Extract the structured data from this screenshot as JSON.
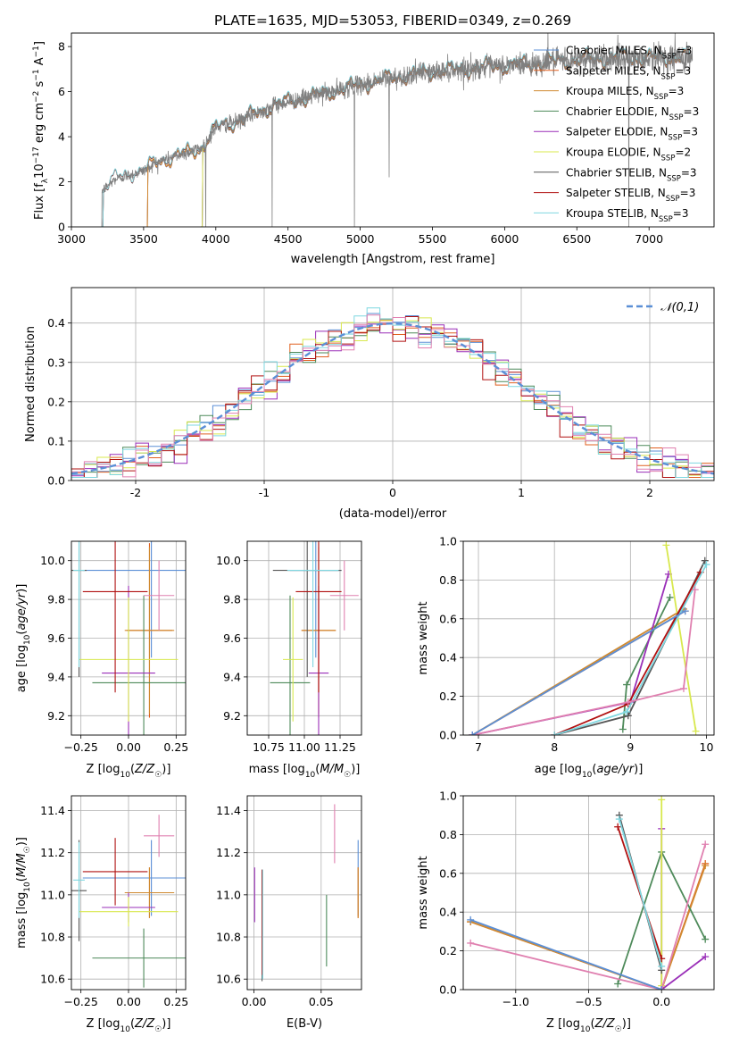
{
  "figure_title": "PLATE=1635, MJD=53053, FIBERID=0349, z=0.269",
  "colors": {
    "chabrier_miles": "#5b8fd6",
    "salpeter_miles": "#e06020",
    "kroupa_miles": "#d08a30",
    "chabrier_elodie": "#4e8a5a",
    "salpeter_elodie": "#9a2fb8",
    "kroupa_elodie": "#d8e84e",
    "chabrier_stelib": "#555555",
    "salpeter_stelib": "#b01010",
    "kroupa_stelib": "#7fd7e0",
    "pink": "#e080b0",
    "data": "#808080",
    "gauss": "#5b8fd6"
  },
  "chart_data": [
    {
      "id": "spectrum",
      "type": "line",
      "xlabel": "wavelength [Angstrom, rest frame]",
      "ylabel": "Flux [f_λ 10^-17 erg cm^-2 s^-1 A^-1]",
      "xlim": [
        3000,
        7450
      ],
      "ylim": [
        0,
        8.6
      ],
      "xticks": [
        3000,
        3500,
        4000,
        4500,
        5000,
        5500,
        6000,
        6500,
        7000
      ],
      "yticks": [
        0,
        2,
        4,
        6,
        8
      ],
      "legend_position": "right",
      "legend": [
        "Chabrier MILES, N_SSP=3",
        "Salpeter MILES, N_SSP=3",
        "Kroupa MILES, N_SSP=3",
        "Chabrier ELODIE, N_SSP=3",
        "Salpeter ELODIE, N_SSP=3",
        "Kroupa ELODIE, N_SSP=2",
        "Chabrier STELIB, N_SSP=3",
        "Salpeter STELIB, N_SSP=3",
        "Kroupa STELIB, N_SSP=3"
      ],
      "data_range": [
        3210,
        7300
      ],
      "model_start": [
        3520,
        3520,
        3520,
        3900,
        3900,
        3900,
        3210,
        3210,
        3210
      ],
      "continuum": [
        [
          3210,
          1.6
        ],
        [
          3300,
          2.1
        ],
        [
          3500,
          2.5
        ],
        [
          3600,
          2.9
        ],
        [
          3700,
          3.1
        ],
        [
          3800,
          3.3
        ],
        [
          3900,
          3.5
        ],
        [
          4000,
          4.4
        ],
        [
          4200,
          4.8
        ],
        [
          4400,
          5.4
        ],
        [
          4600,
          5.7
        ],
        [
          4800,
          6.0
        ],
        [
          5000,
          6.3
        ],
        [
          5200,
          6.6
        ],
        [
          5400,
          6.8
        ],
        [
          5600,
          6.95
        ],
        [
          5800,
          7.05
        ],
        [
          6000,
          7.15
        ],
        [
          6200,
          7.25
        ],
        [
          6400,
          7.35
        ],
        [
          6600,
          7.45
        ],
        [
          6800,
          7.5
        ],
        [
          7000,
          7.5
        ],
        [
          7300,
          7.55
        ]
      ],
      "spikes": [
        [
          3210,
          0.0
        ],
        [
          3930,
          0.0
        ],
        [
          4390,
          0.0
        ],
        [
          4960,
          0.0
        ],
        [
          5200,
          2.2
        ],
        [
          6300,
          8.6
        ],
        [
          6860,
          0.0
        ],
        [
          7180,
          8.6
        ]
      ]
    },
    {
      "id": "residuals",
      "type": "histogram",
      "xlabel": "(data-model)/error",
      "ylabel": "Normed distribution",
      "xlim": [
        -2.5,
        2.5
      ],
      "ylim": [
        0,
        0.49
      ],
      "xticks": [
        -2,
        -1,
        0,
        1,
        2
      ],
      "yticks": [
        0.0,
        0.1,
        0.2,
        0.3,
        0.4
      ],
      "bin_width": 0.1,
      "legend": "𝒩(0,1)",
      "legend_position": "top-right",
      "grid": true
    },
    {
      "id": "age_vs_Z",
      "type": "errorbar",
      "xlabel": "Z [log10(Z/Z☉)]",
      "ylabel": "age  [log10(age/yr)]",
      "xlim": [
        -0.3,
        0.3
      ],
      "ylim": [
        9.1,
        10.1
      ],
      "xticks": [
        -0.25,
        0.0,
        0.25
      ],
      "xticklabels": [
        "−0.25",
        "0.00",
        "0.25"
      ],
      "yticks": [
        9.2,
        9.4,
        9.6,
        9.8,
        10.0
      ],
      "points": [
        {
          "c": "chabrier_miles",
          "x": 0.12,
          "xe": 0.36,
          "y": 9.95,
          "ye": 0.45
        },
        {
          "c": "salpeter_miles",
          "x": 0.11,
          "xe": 0.12,
          "y": 9.64,
          "ye": 0.45
        },
        {
          "c": "kroupa_miles",
          "x": 0.11,
          "xe": 0.13,
          "y": 9.64,
          "ye": 0.43
        },
        {
          "c": "chabrier_elodie",
          "x": 0.08,
          "xe": 0.27,
          "y": 9.37,
          "ye": 0.45
        },
        {
          "c": "salpeter_elodie",
          "x": 0.0,
          "xe": 0.14,
          "y": 9.42,
          "ye": 0.45
        },
        {
          "c": "kroupa_elodie",
          "x": 0.0,
          "xe": 0.26,
          "y": 9.49,
          "ye": 0.32
        },
        {
          "c": "chabrier_stelib",
          "x": -0.26,
          "xe": 0.04,
          "y": 9.95,
          "ye": 0.55
        },
        {
          "c": "salpeter_stelib",
          "x": -0.07,
          "xe": 0.17,
          "y": 9.84,
          "ye": 0.52
        },
        {
          "c": "kroupa_stelib",
          "x": -0.26,
          "xe": 0.03,
          "y": 9.95,
          "ye": 0.5
        },
        {
          "c": "pink",
          "x": 0.16,
          "xe": 0.08,
          "y": 9.82,
          "ye": 0.18
        }
      ]
    },
    {
      "id": "age_vs_mass",
      "type": "errorbar",
      "xlabel": "mass [log10(M/M☉)]",
      "ylabel": "",
      "xlim": [
        10.6,
        11.4
      ],
      "ylim": [
        9.1,
        10.1
      ],
      "xticks": [
        10.75,
        11.0,
        11.25
      ],
      "xticklabels": [
        "10.75",
        "11.00",
        "11.25"
      ],
      "yticks": [
        9.2,
        9.4,
        9.6,
        9.8,
        10.0
      ],
      "points": [
        {
          "c": "chabrier_miles",
          "x": 11.08,
          "xe": 0.18,
          "y": 9.95,
          "ye": 0.45
        },
        {
          "c": "salpeter_miles",
          "x": 11.1,
          "xe": 0.12,
          "y": 9.64,
          "ye": 0.45
        },
        {
          "c": "kroupa_miles",
          "x": 11.1,
          "xe": 0.12,
          "y": 9.64,
          "ye": 0.43
        },
        {
          "c": "chabrier_elodie",
          "x": 10.9,
          "xe": 0.14,
          "y": 9.37,
          "ye": 0.45
        },
        {
          "c": "salpeter_elodie",
          "x": 11.1,
          "xe": 0.07,
          "y": 9.42,
          "ye": 0.45
        },
        {
          "c": "kroupa_elodie",
          "x": 10.92,
          "xe": 0.07,
          "y": 9.49,
          "ye": 0.32
        },
        {
          "c": "chabrier_stelib",
          "x": 11.02,
          "xe": 0.24,
          "y": 9.95,
          "ye": 0.55
        },
        {
          "c": "salpeter_stelib",
          "x": 11.1,
          "xe": 0.16,
          "y": 9.84,
          "ye": 0.52
        },
        {
          "c": "kroupa_stelib",
          "x": 11.06,
          "xe": 0.18,
          "y": 9.95,
          "ye": 0.5
        },
        {
          "c": "pink",
          "x": 11.28,
          "xe": 0.1,
          "y": 9.82,
          "ye": 0.18
        }
      ]
    },
    {
      "id": "weight_vs_age",
      "type": "line",
      "xlabel": "age  [log10(age/yr)]",
      "ylabel": "mass weight",
      "xlim": [
        6.8,
        10.1
      ],
      "ylim": [
        0,
        1.0
      ],
      "xticks": [
        7,
        8,
        9,
        10
      ],
      "yticks": [
        0.0,
        0.2,
        0.4,
        0.6,
        0.8,
        1.0
      ],
      "series": [
        {
          "c": "salpeter_miles",
          "x": [
            6.92,
            9.72
          ],
          "y": [
            0.0,
            0.64
          ]
        },
        {
          "c": "kroupa_miles",
          "x": [
            6.92,
            9.7
          ],
          "y": [
            0.0,
            0.65
          ]
        },
        {
          "c": "chabrier_elodie",
          "x": [
            8.9,
            8.95,
            9.52
          ],
          "y": [
            0.03,
            0.26,
            0.71
          ]
        },
        {
          "c": "salpeter_elodie",
          "x": [
            6.92,
            9.0,
            9.5
          ],
          "y": [
            0.0,
            0.17,
            0.83
          ]
        },
        {
          "c": "kroupa_elodie",
          "x": [
            9.47,
            9.86
          ],
          "y": [
            0.98,
            0.02
          ]
        },
        {
          "c": "chabrier_stelib",
          "x": [
            8.0,
            8.97,
            9.98
          ],
          "y": [
            0.0,
            0.1,
            0.9
          ]
        },
        {
          "c": "salpeter_stelib",
          "x": [
            8.0,
            8.97,
            9.92
          ],
          "y": [
            0.0,
            0.16,
            0.84
          ]
        },
        {
          "c": "kroupa_stelib",
          "x": [
            8.0,
            8.95,
            10.0
          ],
          "y": [
            0.0,
            0.12,
            0.88
          ]
        },
        {
          "c": "pink",
          "x": [
            6.92,
            8.97,
            9.7,
            9.85
          ],
          "y": [
            0.0,
            0.17,
            0.24,
            0.75
          ]
        },
        {
          "c": "chabrier_miles",
          "x": [
            6.92,
            9.72
          ],
          "y": [
            0.0,
            0.64
          ]
        }
      ]
    },
    {
      "id": "mass_vs_Z",
      "type": "errorbar",
      "xlabel": "Z [log10(Z/Z☉)]",
      "ylabel": "mass [log10(M/M☉)]",
      "xlim": [
        -0.3,
        0.3
      ],
      "ylim": [
        10.55,
        11.47
      ],
      "xticks": [
        -0.25,
        0.0,
        0.25
      ],
      "xticklabels": [
        "−0.25",
        "0.00",
        "0.25"
      ],
      "yticks": [
        10.6,
        10.8,
        11.0,
        11.2,
        11.4
      ],
      "points": [
        {
          "c": "chabrier_miles",
          "x": 0.12,
          "xe": 0.36,
          "y": 11.08,
          "ye": 0.18
        },
        {
          "c": "salpeter_miles",
          "x": 0.11,
          "xe": 0.12,
          "y": 11.01,
          "ye": 0.12
        },
        {
          "c": "kroupa_miles",
          "x": 0.11,
          "xe": 0.13,
          "y": 11.01,
          "ye": 0.12
        },
        {
          "c": "chabrier_elodie",
          "x": 0.08,
          "xe": 0.27,
          "y": 10.7,
          "ye": 0.14
        },
        {
          "c": "salpeter_elodie",
          "x": 0.0,
          "xe": 0.14,
          "y": 10.94,
          "ye": 0.07
        },
        {
          "c": "kroupa_elodie",
          "x": 0.0,
          "xe": 0.26,
          "y": 10.92,
          "ye": 0.07
        },
        {
          "c": "chabrier_stelib",
          "x": -0.26,
          "xe": 0.04,
          "y": 11.02,
          "ye": 0.24
        },
        {
          "c": "salpeter_stelib",
          "x": -0.07,
          "xe": 0.17,
          "y": 11.11,
          "ye": 0.16
        },
        {
          "c": "kroupa_stelib",
          "x": -0.26,
          "xe": 0.03,
          "y": 11.07,
          "ye": 0.18
        },
        {
          "c": "pink",
          "x": 0.16,
          "xe": 0.08,
          "y": 11.28,
          "ye": 0.1
        }
      ]
    },
    {
      "id": "mass_vs_ebv",
      "type": "errorbar",
      "xlabel": "E(B-V)",
      "ylabel": "",
      "xlim": [
        -0.005,
        0.08
      ],
      "ylim": [
        10.55,
        11.47
      ],
      "xticks": [
        0.0,
        0.05
      ],
      "xticklabels": [
        "0.00",
        "0.05"
      ],
      "yticks": [
        10.6,
        10.8,
        11.0,
        11.2,
        11.4
      ],
      "points": [
        {
          "c": "chabrier_miles",
          "x": 0.0775,
          "xe": 0,
          "y": 11.08,
          "ye": 0.18
        },
        {
          "c": "salpeter_miles",
          "x": 0.0775,
          "xe": 0,
          "y": 11.01,
          "ye": 0.12
        },
        {
          "c": "kroupa_miles",
          "x": 0.0775,
          "xe": 0,
          "y": 11.01,
          "ye": 0.12
        },
        {
          "c": "chabrier_elodie",
          "x": 0.054,
          "xe": 0,
          "y": 10.83,
          "ye": 0.17
        },
        {
          "c": "salpeter_elodie",
          "x": 0.0005,
          "xe": 0,
          "y": 11.0,
          "ye": 0.13
        },
        {
          "c": "kroupa_elodie",
          "x": 0.006,
          "xe": 0,
          "y": 10.9,
          "ye": 0.2
        },
        {
          "c": "chabrier_stelib",
          "x": 0.006,
          "xe": 0,
          "y": 10.85,
          "ye": 0.26
        },
        {
          "c": "salpeter_stelib",
          "x": 0.006,
          "xe": 0,
          "y": 10.87,
          "ye": 0.25
        },
        {
          "c": "kroupa_stelib",
          "x": 0.0065,
          "xe": 0,
          "y": 10.86,
          "ye": 0.26
        },
        {
          "c": "pink",
          "x": 0.06,
          "xe": 0,
          "y": 11.29,
          "ye": 0.14
        }
      ]
    },
    {
      "id": "weight_vs_Z",
      "type": "line",
      "xlabel": "Z [log10(Z/Z☉)]",
      "ylabel": "mass weight",
      "xlim": [
        -1.36,
        0.36
      ],
      "ylim": [
        0,
        1.0
      ],
      "xticks": [
        -1.0,
        -0.5,
        0.0
      ],
      "xticklabels": [
        "−1.0",
        "−0.5",
        "0.0"
      ],
      "yticks": [
        0.0,
        0.2,
        0.4,
        0.6,
        0.8,
        1.0
      ],
      "series": [
        {
          "c": "salpeter_miles",
          "x": [
            -1.31,
            0.0,
            0.3
          ],
          "y": [
            0.35,
            0.0,
            0.65
          ]
        },
        {
          "c": "kroupa_miles",
          "x": [
            -1.31,
            0.0,
            0.3
          ],
          "y": [
            0.35,
            0.0,
            0.64
          ]
        },
        {
          "c": "chabrier_elodie",
          "x": [
            -0.3,
            0.0,
            0.3
          ],
          "y": [
            0.03,
            0.71,
            0.26
          ]
        },
        {
          "c": "salpeter_elodie",
          "x": [
            0.0,
            0.0,
            0.3
          ],
          "y": [
            0.83,
            0.0,
            0.17
          ]
        },
        {
          "c": "kroupa_elodie",
          "x": [
            0.0,
            0.0
          ],
          "y": [
            0.98,
            0.02
          ]
        },
        {
          "c": "chabrier_stelib",
          "x": [
            -0.29,
            0.0
          ],
          "y": [
            0.9,
            0.1
          ]
        },
        {
          "c": "salpeter_stelib",
          "x": [
            -0.3,
            0.0
          ],
          "y": [
            0.84,
            0.16
          ]
        },
        {
          "c": "kroupa_stelib",
          "x": [
            -0.29,
            0.0
          ],
          "y": [
            0.88,
            0.12
          ]
        },
        {
          "c": "pink",
          "x": [
            -1.31,
            0.0,
            0.3
          ],
          "y": [
            0.24,
            0.0,
            0.75
          ]
        },
        {
          "c": "chabrier_miles",
          "x": [
            -1.31,
            0.0
          ],
          "y": [
            0.36,
            0.0
          ]
        }
      ]
    }
  ]
}
